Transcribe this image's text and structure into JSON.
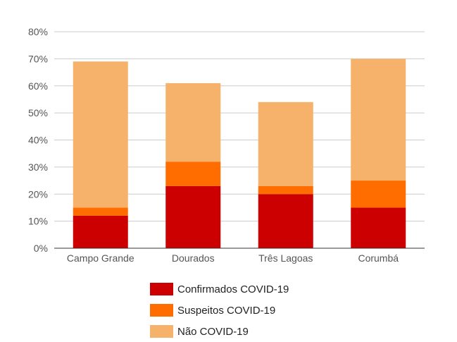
{
  "chart_data": {
    "type": "bar",
    "stacked": true,
    "categories": [
      "Campo Grande",
      "Dourados",
      "Três Lagoas",
      "Corumbá"
    ],
    "series": [
      {
        "name": "Confirmados COVID-19",
        "color": "#cc0000",
        "values": [
          12,
          23,
          20,
          15
        ]
      },
      {
        "name": "Suspeitos COVID-19",
        "color": "#ff6d01",
        "values": [
          3,
          9,
          3,
          10
        ]
      },
      {
        "name": "Não COVID-19",
        "color": "#f6b26b",
        "values": [
          54,
          29,
          31,
          45
        ]
      }
    ],
    "ylim": [
      0,
      80
    ],
    "yticks": [
      "0%",
      "10%",
      "20%",
      "30%",
      "40%",
      "50%",
      "60%",
      "70%",
      "80%"
    ],
    "grid": true,
    "legend_position": "bottom"
  }
}
